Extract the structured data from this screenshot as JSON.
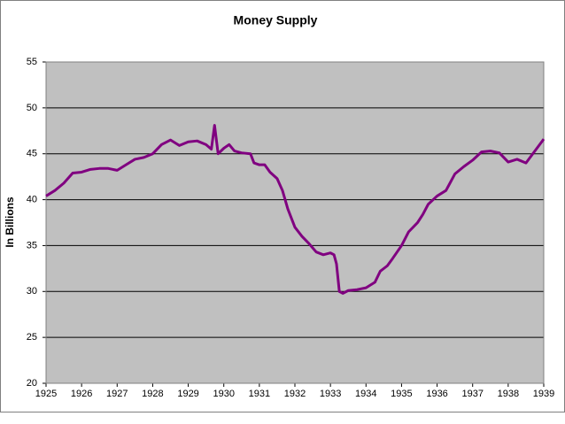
{
  "chart_data": {
    "type": "line",
    "title": "Money Supply",
    "y_label": "In Billions",
    "x": [
      1925.0,
      1925.25,
      1925.5,
      1925.75,
      1926.0,
      1926.25,
      1926.5,
      1926.75,
      1927.0,
      1927.25,
      1927.5,
      1927.75,
      1928.0,
      1928.25,
      1928.5,
      1928.75,
      1929.0,
      1929.25,
      1929.5,
      1929.65,
      1929.74,
      1929.84,
      1930.0,
      1930.15,
      1930.3,
      1930.5,
      1930.75,
      1930.85,
      1931.0,
      1931.15,
      1931.3,
      1931.5,
      1931.65,
      1931.8,
      1932.0,
      1932.2,
      1932.4,
      1932.6,
      1932.8,
      1933.0,
      1933.1,
      1933.17,
      1933.25,
      1933.35,
      1933.5,
      1933.75,
      1934.0,
      1934.25,
      1934.4,
      1934.6,
      1934.75,
      1935.0,
      1935.2,
      1935.45,
      1935.6,
      1935.75,
      1936.0,
      1936.25,
      1936.5,
      1936.75,
      1937.0,
      1937.25,
      1937.5,
      1937.75,
      1938.0,
      1938.25,
      1938.5,
      1938.75,
      1939.0
    ],
    "series": [
      {
        "name": "Money Supply",
        "color": "#800080",
        "values": [
          40.4,
          41.0,
          41.8,
          42.9,
          43.0,
          43.3,
          43.4,
          43.4,
          43.2,
          43.8,
          44.4,
          44.6,
          45.0,
          46.0,
          46.5,
          45.9,
          46.3,
          46.4,
          46.0,
          45.5,
          48.1,
          45.0,
          45.6,
          46.0,
          45.3,
          45.1,
          45.0,
          44.0,
          43.8,
          43.8,
          43.0,
          42.3,
          41.0,
          39.0,
          37.0,
          36.0,
          35.2,
          34.3,
          34.0,
          34.2,
          34.0,
          33.0,
          30.0,
          29.8,
          30.1,
          30.2,
          30.4,
          31.0,
          32.2,
          32.8,
          33.6,
          35.0,
          36.5,
          37.5,
          38.4,
          39.5,
          40.4,
          41.0,
          42.8,
          43.6,
          44.3,
          45.2,
          45.3,
          45.1,
          44.1,
          44.4,
          44.0,
          45.3,
          46.6
        ]
      }
    ],
    "xlim": [
      1925,
      1939
    ],
    "xticks": [
      1925,
      1926,
      1927,
      1928,
      1929,
      1930,
      1931,
      1932,
      1933,
      1934,
      1935,
      1936,
      1937,
      1938,
      1939
    ],
    "ylim": [
      20,
      55
    ],
    "yticks": [
      20,
      25,
      30,
      35,
      40,
      45,
      50,
      55
    ],
    "grid": true
  }
}
